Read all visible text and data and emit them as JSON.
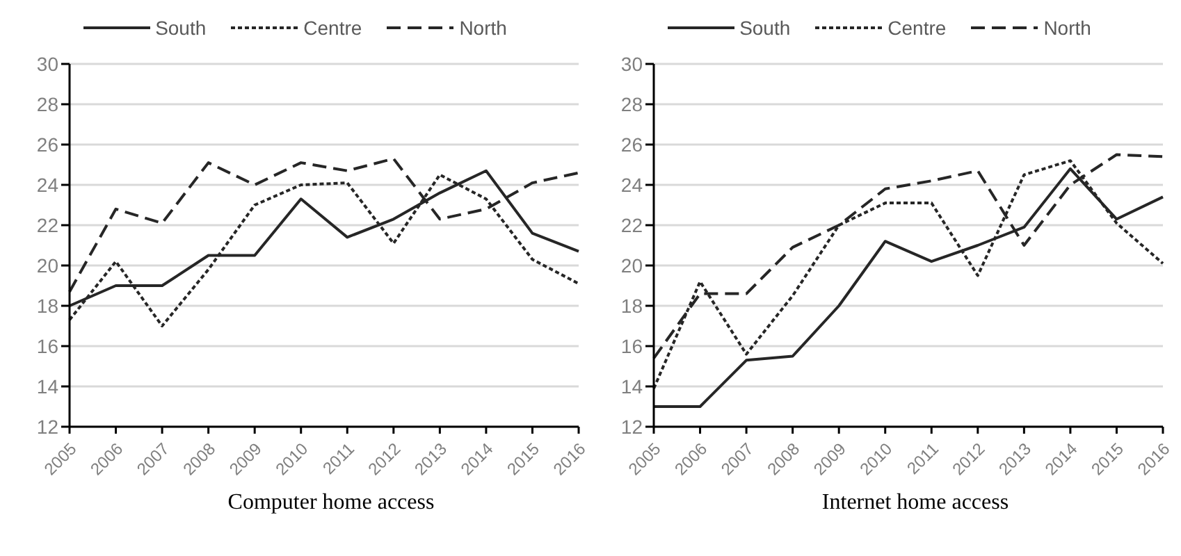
{
  "chart_data": [
    {
      "type": "line",
      "title": "Computer home access",
      "categories": [
        "2005",
        "2006",
        "2007",
        "2008",
        "2009",
        "2010",
        "2011",
        "2012",
        "2013",
        "2014",
        "2015",
        "2016"
      ],
      "ylim": [
        12,
        30
      ],
      "yticks": [
        12,
        14,
        16,
        18,
        20,
        22,
        24,
        26,
        28,
        30
      ],
      "grid": "y",
      "legend": "top",
      "marker": "none",
      "series": [
        {
          "name": "South",
          "color": "#262626",
          "line_style": "solid",
          "values": [
            18.0,
            19.0,
            19.0,
            20.5,
            20.5,
            23.3,
            21.4,
            22.3,
            23.6,
            24.7,
            21.6,
            20.7
          ]
        },
        {
          "name": "Centre",
          "color": "#262626",
          "line_style": "dotted",
          "values": [
            17.3,
            20.2,
            17.0,
            19.8,
            23.0,
            24.0,
            24.1,
            21.1,
            24.5,
            23.3,
            20.3,
            19.1
          ]
        },
        {
          "name": "North",
          "color": "#262626",
          "line_style": "dashed",
          "values": [
            18.7,
            22.8,
            22.1,
            25.1,
            24.0,
            25.1,
            24.7,
            25.3,
            22.3,
            22.8,
            24.1,
            24.6
          ]
        }
      ]
    },
    {
      "type": "line",
      "title": "Internet home access",
      "categories": [
        "2005",
        "2006",
        "2007",
        "2008",
        "2009",
        "2010",
        "2011",
        "2012",
        "2013",
        "2014",
        "2015",
        "2016"
      ],
      "ylim": [
        12,
        30
      ],
      "yticks": [
        12,
        14,
        16,
        18,
        20,
        22,
        24,
        26,
        28,
        30
      ],
      "grid": "y",
      "legend": "top",
      "marker": "none",
      "series": [
        {
          "name": "South",
          "color": "#262626",
          "line_style": "solid",
          "values": [
            13.0,
            13.0,
            15.3,
            15.5,
            18.0,
            21.2,
            20.2,
            21.0,
            21.9,
            24.8,
            22.3,
            23.4
          ]
        },
        {
          "name": "Centre",
          "color": "#262626",
          "line_style": "dotted",
          "values": [
            13.9,
            19.2,
            15.6,
            18.5,
            22.0,
            23.1,
            23.1,
            19.5,
            24.5,
            25.2,
            22.1,
            20.1
          ]
        },
        {
          "name": "North",
          "color": "#262626",
          "line_style": "dashed",
          "values": [
            15.4,
            18.6,
            18.6,
            20.9,
            22.0,
            23.8,
            24.2,
            24.7,
            21.0,
            24.0,
            25.5,
            25.4
          ]
        }
      ]
    }
  ]
}
